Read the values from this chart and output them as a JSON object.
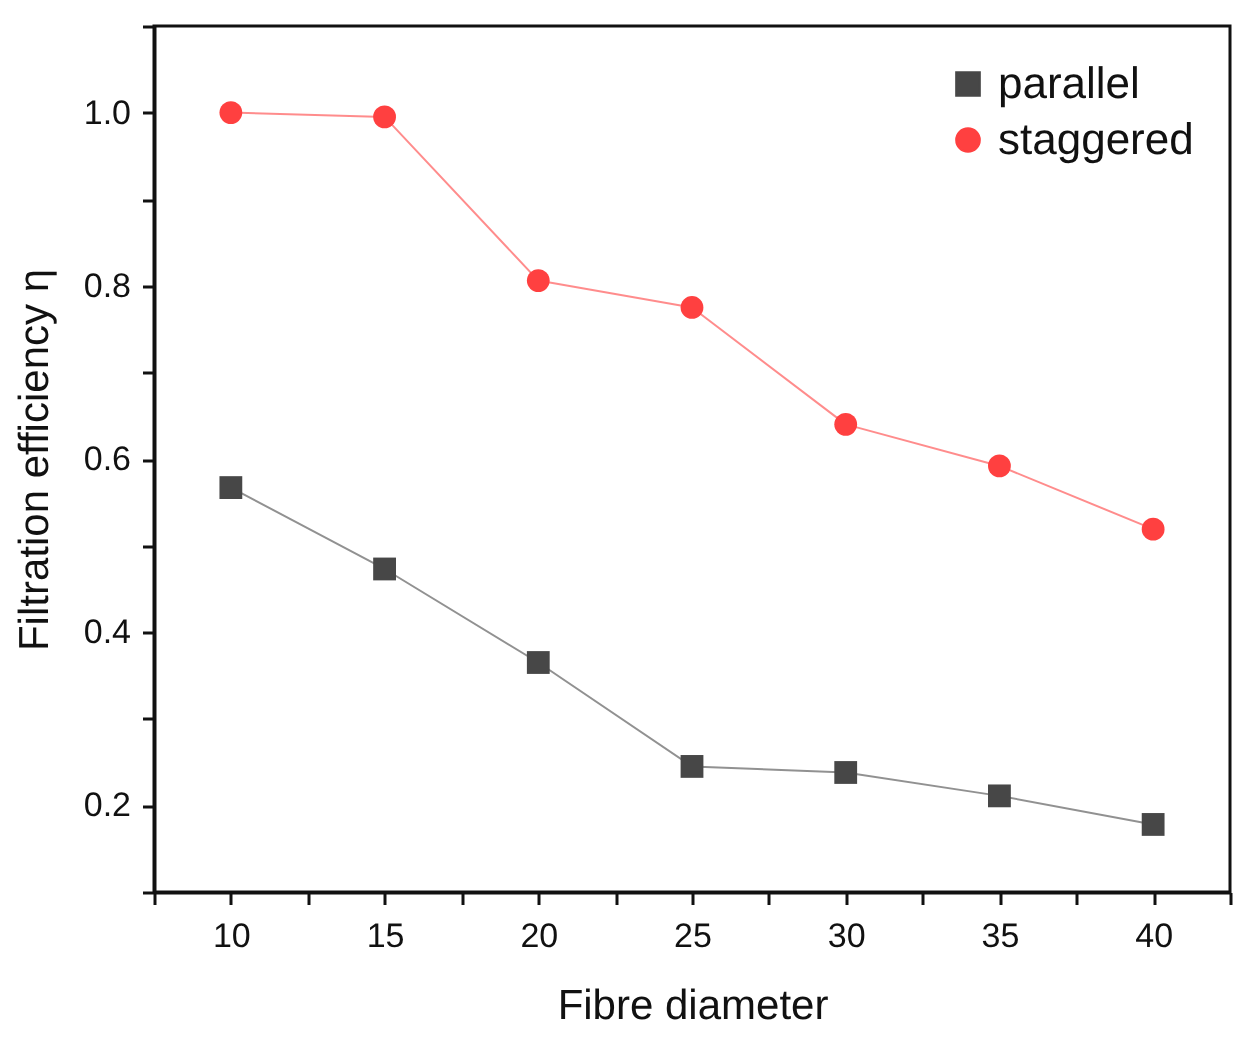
{
  "chart_data": {
    "type": "line",
    "xlabel": "Fibre diameter",
    "ylabel": "Filtration efficiency η",
    "x": [
      10,
      15,
      20,
      25,
      30,
      35,
      40
    ],
    "series": [
      {
        "name": "parallel",
        "color": "#474747",
        "marker": "square",
        "values": [
          0.567,
          0.473,
          0.365,
          0.245,
          0.238,
          0.211,
          0.178
        ]
      },
      {
        "name": "staggered",
        "color": "#ff4040",
        "marker": "circle",
        "values": [
          1.0,
          0.995,
          0.806,
          0.775,
          0.64,
          0.592,
          0.519
        ]
      }
    ],
    "xlim": [
      7.5,
      42.5
    ],
    "xticks": [
      {
        "value": 7.5,
        "label": null
      },
      10,
      {
        "value": 12.5,
        "label": null
      },
      15,
      {
        "value": 17.5,
        "label": null
      },
      20,
      {
        "value": 22.5,
        "label": null
      },
      25,
      {
        "value": 27.5,
        "label": null
      },
      30,
      {
        "value": 32.5,
        "label": null
      },
      35,
      {
        "value": 37.5,
        "label": null
      },
      40,
      {
        "value": 42.5,
        "label": null
      }
    ],
    "ylim": [
      0.1,
      1.1
    ],
    "yticks": [
      {
        "value": 0.1,
        "label": null
      },
      {
        "value": 0.2,
        "label": "0.2"
      },
      {
        "value": 0.3,
        "label": null
      },
      {
        "value": 0.4,
        "label": "0.4"
      },
      {
        "value": 0.5,
        "label": null
      },
      {
        "value": 0.6,
        "label": "0.6"
      },
      {
        "value": 0.7,
        "label": null
      },
      {
        "value": 0.8,
        "label": "0.8"
      },
      {
        "value": 0.9,
        "label": null
      },
      {
        "value": 1.0,
        "label": "1.0"
      },
      {
        "value": 1.1,
        "label": null
      }
    ],
    "legend": "top right",
    "grid": false
  }
}
